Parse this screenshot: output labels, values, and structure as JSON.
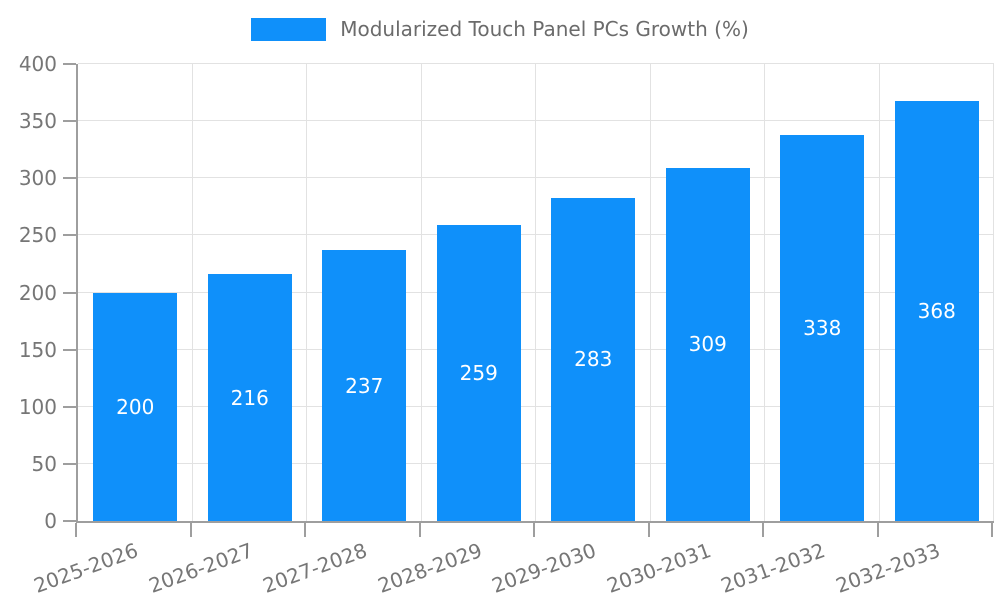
{
  "legend": {
    "label": "Modularized Touch Panel PCs Growth (%)"
  },
  "chart_data": {
    "type": "bar",
    "title": "Modularized Touch Panel PCs Growth (%)",
    "categories": [
      "2025-2026",
      "2026-2027",
      "2027-2028",
      "2028-2029",
      "2029-2030",
      "2030-2031",
      "2031-2032",
      "2032-2033"
    ],
    "series": [
      {
        "name": "Modularized Touch Panel PCs Growth (%)",
        "values": [
          200,
          216,
          237,
          259,
          283,
          309,
          338,
          368
        ]
      }
    ],
    "bar_labels": [
      "200",
      "216",
      "237",
      "259",
      "283",
      "309",
      "338",
      "368"
    ],
    "xlabel": "",
    "ylabel": "",
    "ylim": [
      0,
      400
    ],
    "yticks": [
      0,
      50,
      100,
      150,
      200,
      250,
      300,
      350,
      400
    ],
    "grid": true,
    "legend_position": "top-center",
    "x_label_rotation_deg": -20,
    "colors": {
      "bar": "#0f90fa",
      "bar_label": "#ffffff",
      "axis": "#9e9e9e",
      "grid": "#e2e2e2",
      "tick_text": "#767676",
      "legend_text": "#6b6b6b",
      "background": "#ffffff"
    }
  }
}
